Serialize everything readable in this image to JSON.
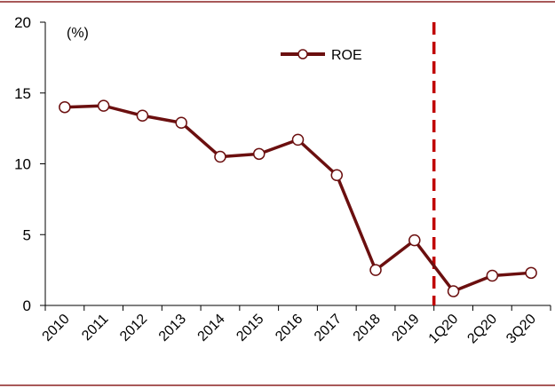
{
  "colors": {
    "series": "#6b0f0f",
    "marker_fill": "#ffffff",
    "divider": "#c00000",
    "frame": "#8b2222",
    "axis": "#000000"
  },
  "chart_data": {
    "type": "line",
    "unit_label": "(%)",
    "ylim": [
      0,
      20
    ],
    "yticks": [
      "0",
      "5",
      "10",
      "15",
      "20"
    ],
    "categories": [
      "2010",
      "2011",
      "2012",
      "2013",
      "2014",
      "2015",
      "2016",
      "2017",
      "2018",
      "2019",
      "1Q20",
      "2Q20",
      "3Q20"
    ],
    "series": [
      {
        "name": "ROE",
        "values": [
          14.0,
          14.1,
          13.4,
          12.9,
          10.5,
          10.7,
          11.7,
          9.2,
          2.5,
          4.6,
          1.0,
          2.1,
          2.3
        ]
      }
    ],
    "divider_between": [
      "2019",
      "1Q20"
    ],
    "grid": false,
    "legend": "top-center"
  }
}
